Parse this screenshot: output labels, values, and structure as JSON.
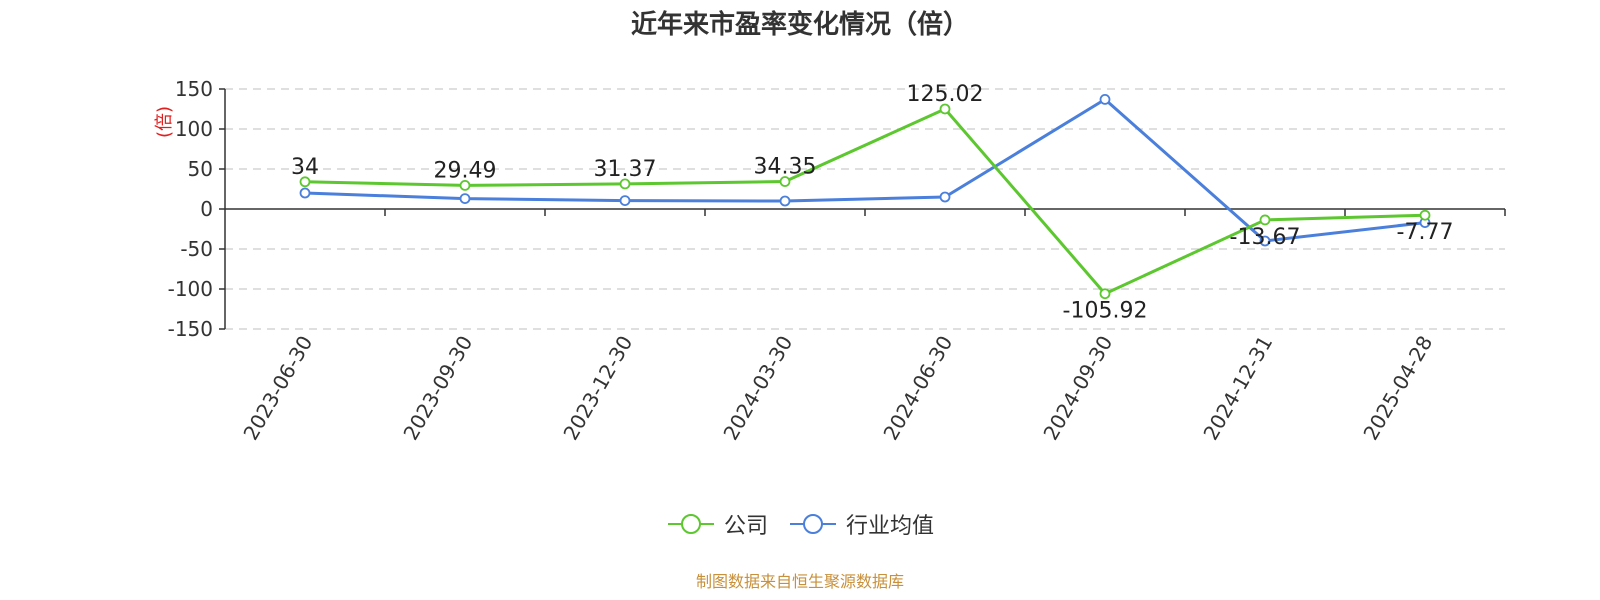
{
  "chart_data": {
    "type": "line",
    "title": "近年来市盈率变化情况（倍）",
    "ylabel": "(倍)",
    "xlabel": "",
    "categories": [
      "2023-06-30",
      "2023-09-30",
      "2023-12-30",
      "2024-03-30",
      "2024-06-30",
      "2024-09-30",
      "2024-12-31",
      "2025-04-28"
    ],
    "ylim": [
      -150,
      150
    ],
    "yticks": [
      150,
      100,
      50,
      0,
      -50,
      -100,
      -150
    ],
    "grid": true,
    "legend_position": "bottom-center",
    "series": [
      {
        "name": "公司",
        "color": "#5cc72e",
        "values": [
          34,
          29.49,
          31.37,
          34.35,
          125.02,
          -105.92,
          -13.67,
          -7.77
        ],
        "labels": [
          "34",
          "29.49",
          "31.37",
          "34.35",
          "125.02",
          "-105.92",
          "-13.67",
          "-7.77"
        ]
      },
      {
        "name": "行业均值",
        "color": "#4a7fdc",
        "values": [
          20,
          13,
          10.5,
          10,
          15,
          137,
          -40,
          -17
        ]
      }
    ]
  },
  "source_note": "制图数据来自恒生聚源数据库",
  "colors": {
    "axis": "#333333",
    "grid": "#cccccc",
    "ylabel": "#e02020",
    "source": "#c8903a"
  }
}
